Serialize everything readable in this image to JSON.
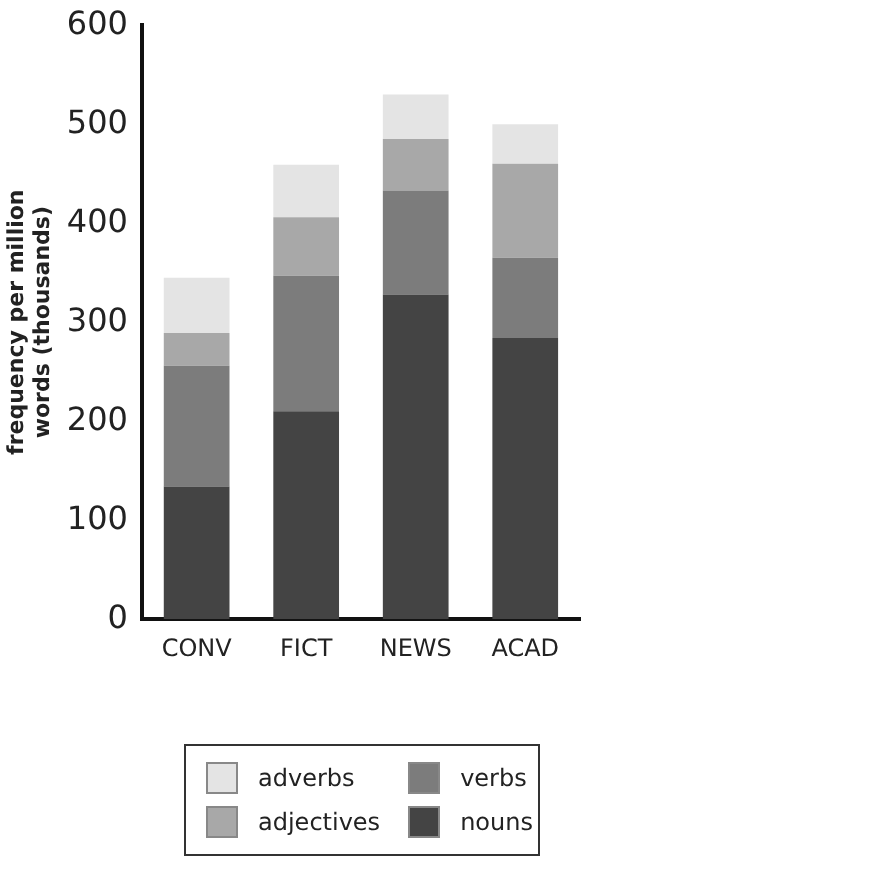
{
  "chart_data": {
    "type": "bar",
    "stacked": true,
    "ylabel": "frequency per million words (thousands)",
    "categories": [
      "CONV",
      "FICT",
      "NEWS",
      "ACAD"
    ],
    "series": [
      {
        "name": "nouns",
        "color": "#444444",
        "values": [
          134,
          210,
          328,
          284
        ]
      },
      {
        "name": "verbs",
        "color": "#7c7c7c",
        "values": [
          122,
          137,
          105,
          81
        ]
      },
      {
        "name": "adjectives",
        "color": "#a8a8a8",
        "values": [
          33,
          59,
          52,
          95
        ]
      },
      {
        "name": "adverbs",
        "color": "#e4e4e4",
        "values": [
          56,
          53,
          45,
          40
        ]
      }
    ],
    "ylim": [
      0,
      600
    ],
    "yticks": [
      0,
      100,
      200,
      300,
      400,
      500,
      600
    ],
    "grid": false,
    "legend": "bottom"
  }
}
